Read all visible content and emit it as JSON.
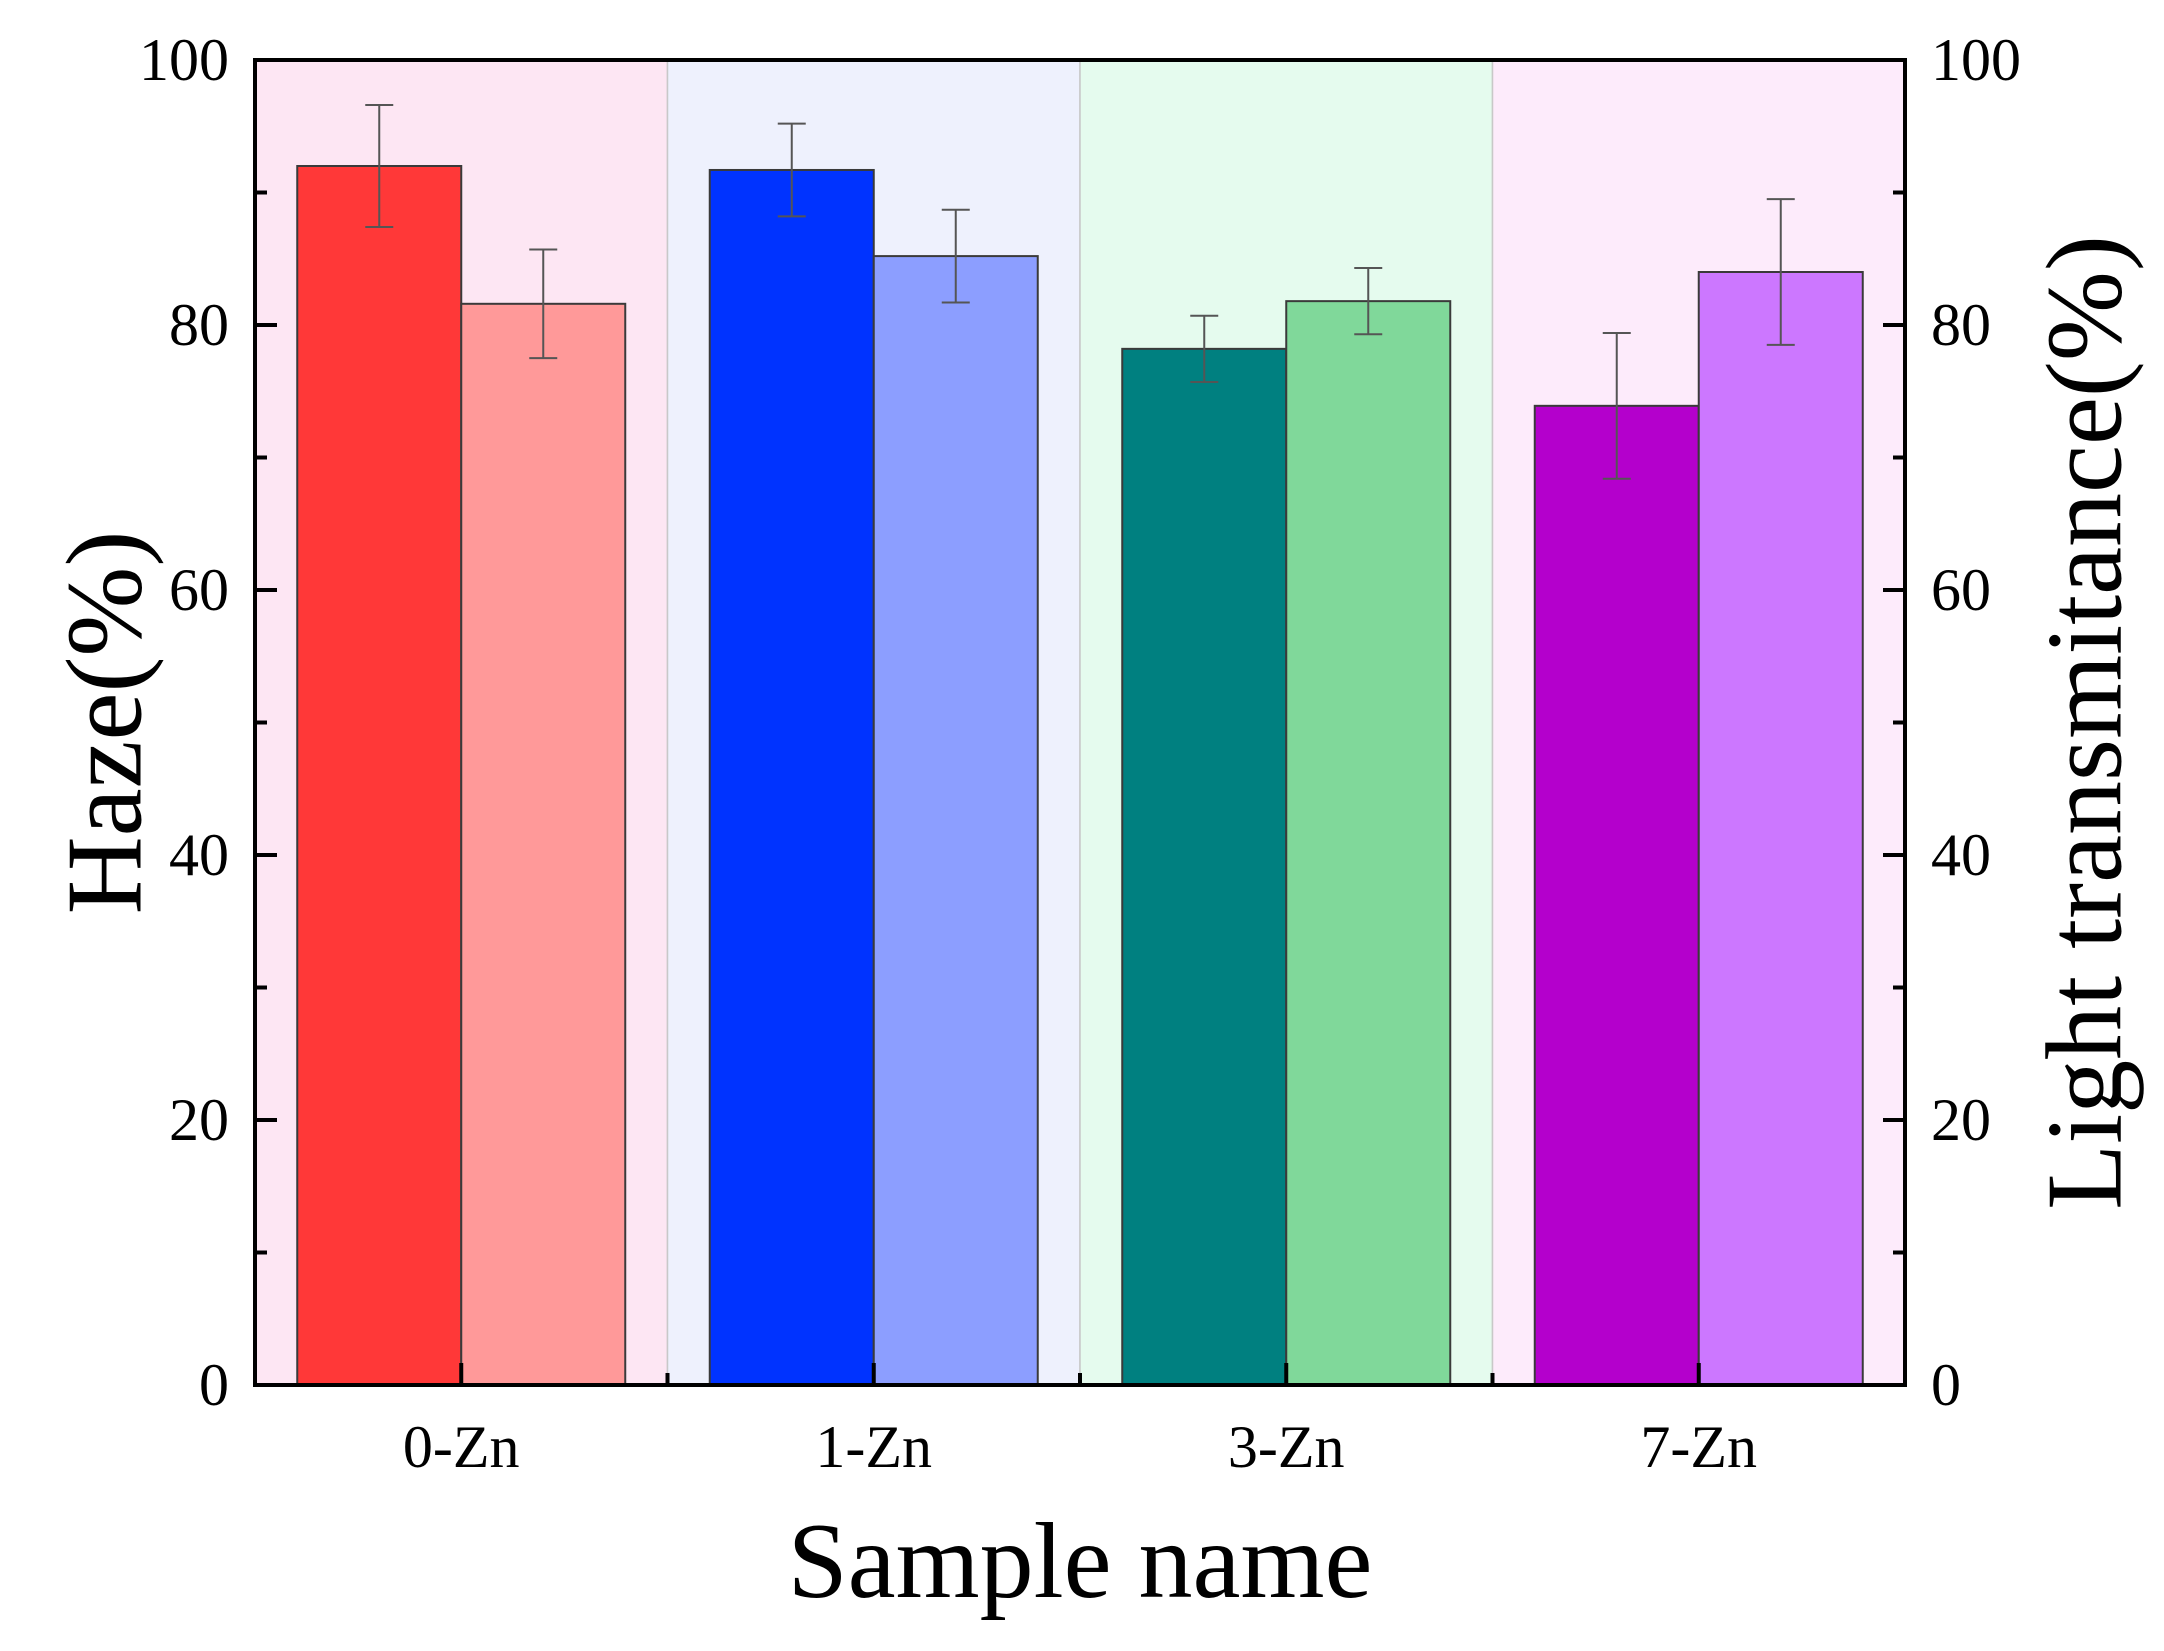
{
  "chart_data": {
    "type": "bar",
    "categories": [
      "0-Zn",
      "1-Zn",
      "3-Zn",
      "7-Zn"
    ],
    "series": [
      {
        "name": "Haze",
        "axis": "left",
        "values": [
          92.0,
          91.7,
          78.2,
          73.9
        ],
        "errors": [
          4.6,
          3.5,
          2.5,
          5.5
        ],
        "colors": [
          "#ff3838",
          "#0033ff",
          "#008080",
          "#b400cc"
        ]
      },
      {
        "name": "Light transmitance",
        "axis": "right",
        "values": [
          81.6,
          85.2,
          81.8,
          84.0
        ],
        "errors": [
          4.1,
          3.5,
          2.5,
          5.5
        ],
        "colors": [
          "#ff9999",
          "#8c9eff",
          "#80d89a",
          "#cc77ff"
        ]
      }
    ],
    "group_backgrounds": [
      "#fde6f3",
      "#eef1fd",
      "#e5fbee",
      "#fdebfb"
    ],
    "xlabel": "Sample name",
    "ylabel": "Haze(%)",
    "y2label": "Light transmitance(%)",
    "ylim": [
      0,
      100
    ],
    "y2lim": [
      0,
      100
    ],
    "yticks": [
      0,
      20,
      40,
      60,
      80,
      100
    ],
    "y2ticks": [
      0,
      20,
      40,
      60,
      80,
      100
    ],
    "grid": false
  }
}
